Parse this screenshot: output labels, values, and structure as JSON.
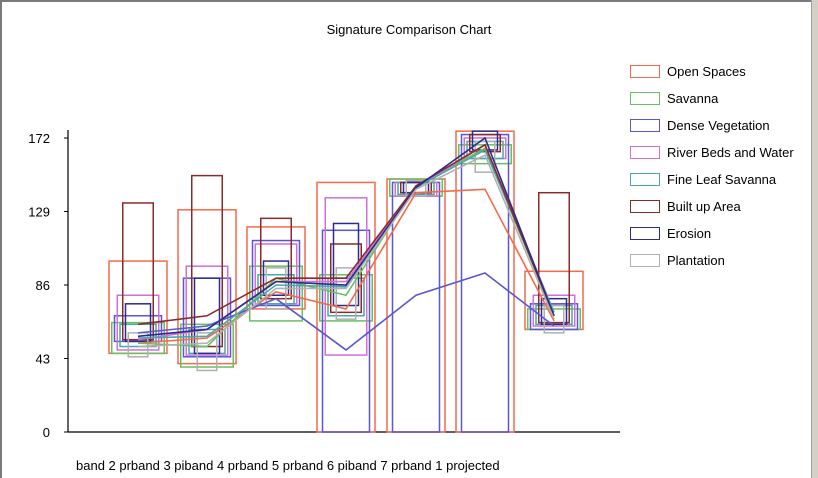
{
  "chart_data": {
    "type": "line",
    "title": "Signature Comparison Chart",
    "xlabel": "",
    "ylabel": "",
    "ylim": [
      0,
      172
    ],
    "yticks": [
      0,
      43,
      86,
      129,
      172
    ],
    "x_axis_text": "band 2 prband 3 piband 4 prband 5 prband 6 piband 7 prband 1 projected",
    "categories": [
      "band 2 pr",
      "band 3 pr",
      "band 4 pr",
      "band 5 pr",
      "band 6 pr",
      "band 7 pr",
      "band 1 projected"
    ],
    "legend_position": "right",
    "series": [
      {
        "name": "Open Spaces",
        "color": "#f46a4a",
        "values": [
          52,
          55,
          82,
          72,
          140,
          142,
          65
        ],
        "min": [
          46,
          40,
          72,
          0,
          0,
          0,
          60
        ],
        "max": [
          100,
          130,
          120,
          146,
          148,
          176,
          94
        ]
      },
      {
        "name": "Savanna",
        "color": "#66c060",
        "values": [
          52,
          50,
          90,
          80,
          144,
          166,
          68
        ],
        "min": [
          46,
          38,
          65,
          65,
          138,
          157,
          60
        ],
        "max": [
          64,
          63,
          97,
          92,
          148,
          168,
          72
        ]
      },
      {
        "name": "Dense Vegetation",
        "color": "#5858d0",
        "values": [
          58,
          62,
          78,
          48,
          80,
          93,
          62
        ],
        "min": [
          53,
          44,
          74,
          0,
          0,
          0,
          60
        ],
        "max": [
          68,
          90,
          112,
          118,
          146,
          174,
          75
        ]
      },
      {
        "name": "River Beds and Water",
        "color": "#d070d8",
        "values": [
          54,
          60,
          88,
          88,
          143,
          168,
          70
        ],
        "min": [
          48,
          45,
          75,
          45,
          138,
          160,
          62
        ],
        "max": [
          80,
          97,
          110,
          137,
          146,
          172,
          80
        ]
      },
      {
        "name": "Fine Leaf Savanna",
        "color": "#48a8a8",
        "values": [
          55,
          56,
          86,
          85,
          143,
          165,
          70
        ],
        "min": [
          50,
          46,
          75,
          68,
          139,
          160,
          63
        ],
        "max": [
          63,
          60,
          92,
          90,
          146,
          170,
          74
        ]
      },
      {
        "name": "Built up Area",
        "color": "#8b2a2a",
        "values": [
          63,
          68,
          90,
          90,
          144,
          168,
          68
        ],
        "min": [
          54,
          50,
          78,
          70,
          140,
          164,
          64
        ],
        "max": [
          134,
          150,
          125,
          110,
          146,
          174,
          140
        ]
      },
      {
        "name": "Erosion",
        "color": "#2c2c8c",
        "values": [
          56,
          60,
          88,
          86,
          143,
          172,
          68
        ],
        "min": [
          53,
          46,
          80,
          74,
          140,
          165,
          63
        ],
        "max": [
          75,
          90,
          100,
          122,
          146,
          176,
          78
        ]
      },
      {
        "name": "Plantation",
        "color": "#b0b0b0",
        "values": [
          50,
          52,
          84,
          84,
          142,
          162,
          66
        ],
        "min": [
          44,
          36,
          72,
          66,
          138,
          152,
          58
        ],
        "max": [
          58,
          58,
          96,
          96,
          147,
          170,
          74
        ]
      }
    ]
  }
}
